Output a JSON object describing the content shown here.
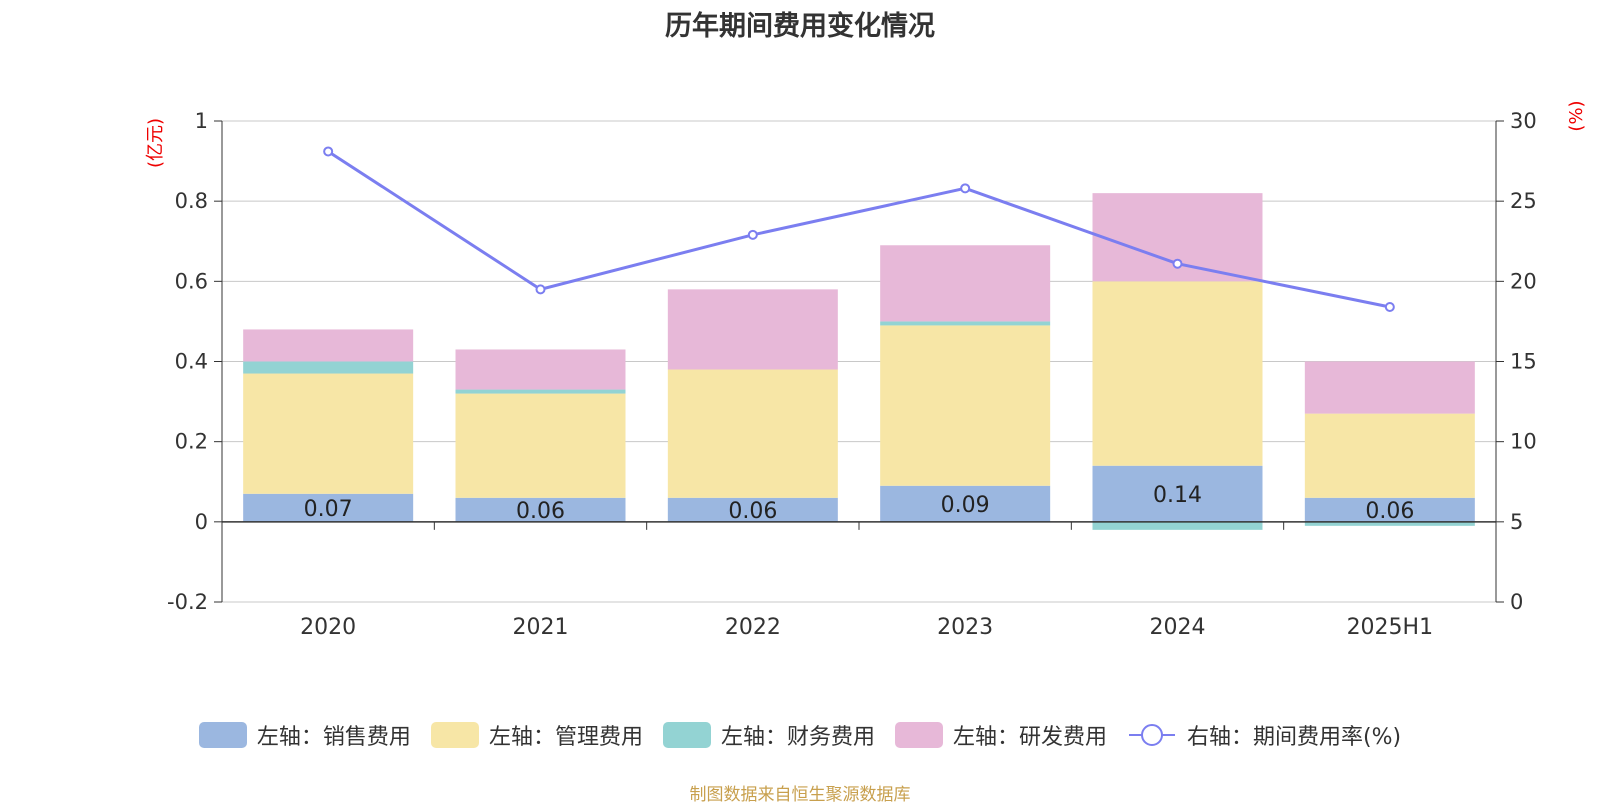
{
  "title": "历年期间费用变化情况",
  "left_unit": "(亿元)",
  "right_unit": "(%)",
  "source": "制图数据来自恒生聚源数据库",
  "colors": {
    "sales": "#9bb7e0",
    "admin": "#f7e6a6",
    "finance": "#93d3d3",
    "rd": "#e7b8d8",
    "rate": "#7b7ef0",
    "axis_unit": "#ee0000"
  },
  "legend": [
    {
      "key": "sales",
      "label": "左轴：销售费用"
    },
    {
      "key": "admin",
      "label": "左轴：管理费用"
    },
    {
      "key": "finance",
      "label": "左轴：财务费用"
    },
    {
      "key": "rd",
      "label": "左轴：研发费用"
    },
    {
      "key": "rate",
      "label": "右轴：期间费用率(%)"
    }
  ],
  "chart_data": {
    "type": "bar",
    "stacked": true,
    "categories": [
      "2020",
      "2021",
      "2022",
      "2023",
      "2024",
      "2025H1"
    ],
    "series": [
      {
        "name": "左轴：销售费用",
        "axis": "left",
        "values": [
          0.07,
          0.06,
          0.06,
          0.09,
          0.14,
          0.06
        ],
        "labels": [
          "0.07",
          "0.06",
          "0.06",
          "0.09",
          "0.14",
          "0.06"
        ]
      },
      {
        "name": "左轴：管理费用",
        "axis": "left",
        "values": [
          0.3,
          0.26,
          0.32,
          0.4,
          0.46,
          0.21
        ]
      },
      {
        "name": "左轴：财务费用",
        "axis": "left",
        "values": [
          0.03,
          0.01,
          0.0,
          0.01,
          -0.02,
          -0.01
        ]
      },
      {
        "name": "左轴：研发费用",
        "axis": "left",
        "values": [
          0.08,
          0.1,
          0.2,
          0.19,
          0.22,
          0.13
        ]
      },
      {
        "name": "右轴：期间费用率(%)",
        "axis": "right",
        "type": "line",
        "values": [
          28.1,
          19.5,
          22.9,
          25.8,
          21.1,
          18.4
        ]
      }
    ],
    "left_axis": {
      "ylim": [
        -0.2,
        1
      ],
      "ticks": [
        "-0.2",
        "0",
        "0.2",
        "0.4",
        "0.6",
        "0.8",
        "1"
      ]
    },
    "right_axis": {
      "ylim": [
        0,
        30
      ],
      "ticks": [
        "0",
        "5",
        "10",
        "15",
        "20",
        "25",
        "30"
      ]
    },
    "grid": true,
    "legend_position": "bottom"
  }
}
